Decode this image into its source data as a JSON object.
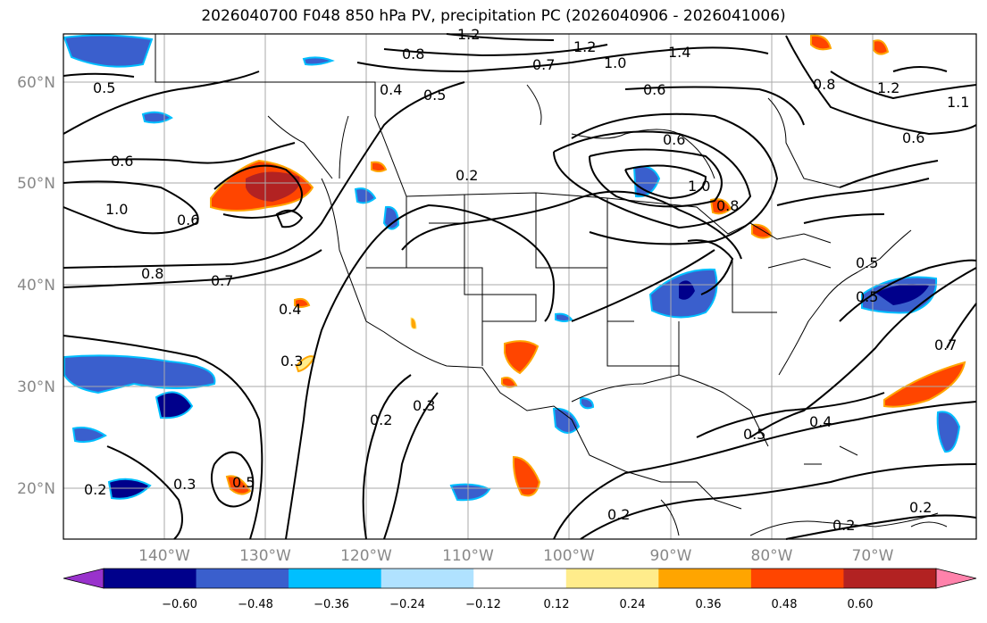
{
  "title": "2026040700 F048 850 hPa PV, precipitation PC (2026040906 - 2026041006)",
  "map": {
    "lat_labels": [
      "60°N",
      "50°N",
      "40°N",
      "30°N",
      "20°N"
    ],
    "lon_labels": [
      "140°W",
      "130°W",
      "120°W",
      "110°W",
      "100°W",
      "90°W",
      "80°W",
      "70°W"
    ],
    "extent": {
      "lon_min": -150,
      "lon_max": -59,
      "lat_min": 15,
      "lat_max": 65
    },
    "gridlines": true
  },
  "colorbar": {
    "ticks": [
      "−0.60",
      "−0.48",
      "−0.36",
      "−0.24",
      "−0.12",
      "0.12",
      "0.24",
      "0.36",
      "0.48",
      "0.60"
    ],
    "colors": [
      "#9932cc",
      "#00008b",
      "#3a5fcd",
      "#00bfff",
      "#b0e2ff",
      "#ffffff",
      "#ffec8b",
      "#ffa500",
      "#ff4500",
      "#b22222",
      "#ff82ab"
    ],
    "extend": "both"
  },
  "contour_labels": [
    "1.2",
    "0.8",
    "1.2",
    "0.7",
    "1.0",
    "1.4",
    "0.5",
    "0.4",
    "0.5",
    "0.6",
    "0.8",
    "1.2",
    "1.1",
    "0.6",
    "0.6",
    "0.6",
    "0.2",
    "1.0",
    "0.6",
    "1.0",
    "0.8",
    "0.8",
    "0.7",
    "0.5",
    "0.5",
    "0.4",
    "0.3",
    "0.7",
    "0.2",
    "0.3",
    "0.4",
    "0.5",
    "0.5",
    "0.2",
    "0.3",
    "0.2",
    "0.2",
    "0.2"
  ]
}
